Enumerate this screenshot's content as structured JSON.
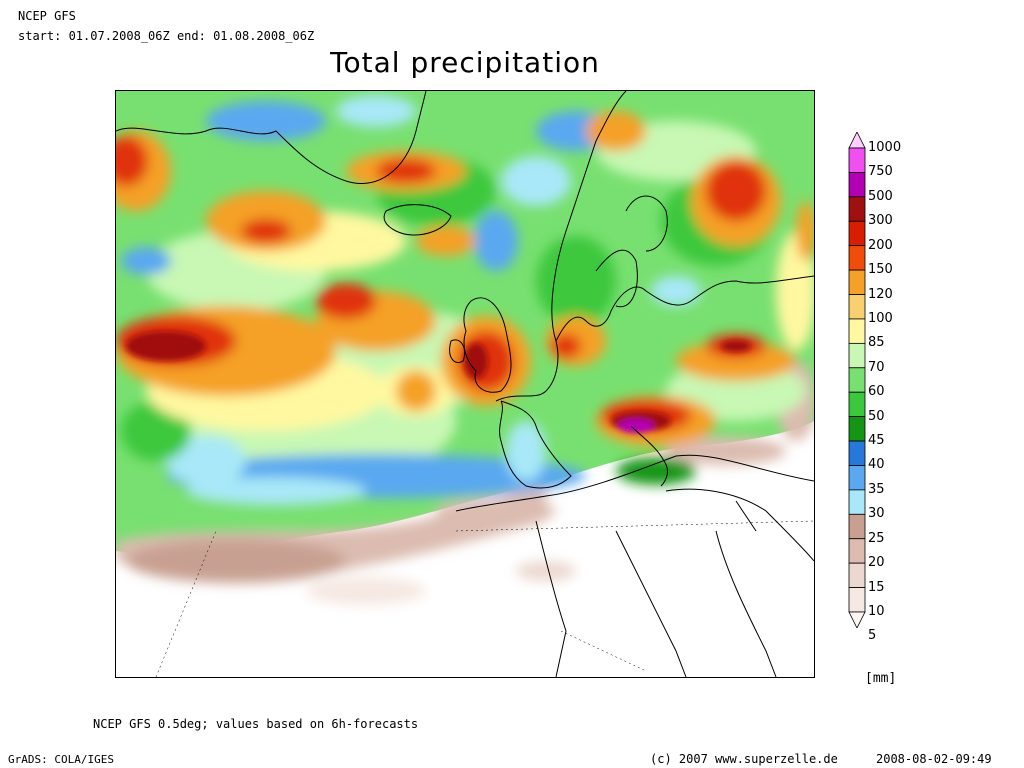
{
  "header": {
    "model": "NCEP GFS",
    "period": "start: 01.07.2008_06Z end: 01.08.2008_06Z",
    "title": "Total precipitation"
  },
  "map": {
    "region": "North Atlantic and Europe",
    "colors": {
      "brown": "#c8a091",
      "light_blue": "#a8e8f8",
      "blue": "#3b8ee8",
      "green_light": "#98f090",
      "green": "#3cc83c",
      "green_dark": "#149614",
      "yellow": "#fff8a0",
      "orange": "#f5a028",
      "red": "#e0320a",
      "dark_red": "#a01010",
      "purple": "#a000a0"
    }
  },
  "legend": {
    "unit": "[mm]",
    "levels": [
      {
        "value": "1000",
        "color": "#ffd0ff"
      },
      {
        "value": "750",
        "color": "#f050f0"
      },
      {
        "value": "500",
        "color": "#b400b4"
      },
      {
        "value": "300",
        "color": "#a01010"
      },
      {
        "value": "200",
        "color": "#d81e00"
      },
      {
        "value": "150",
        "color": "#f04d0a"
      },
      {
        "value": "120",
        "color": "#f5a028"
      },
      {
        "value": "100",
        "color": "#f8d070"
      },
      {
        "value": "85",
        "color": "#fff8a0"
      },
      {
        "value": "70",
        "color": "#c8f8b4"
      },
      {
        "value": "60",
        "color": "#78e070"
      },
      {
        "value": "50",
        "color": "#3cc83c"
      },
      {
        "value": "45",
        "color": "#149614"
      },
      {
        "value": "40",
        "color": "#2878dc"
      },
      {
        "value": "35",
        "color": "#5aa8f0"
      },
      {
        "value": "30",
        "color": "#a8e8f8"
      },
      {
        "value": "25",
        "color": "#c8a091"
      },
      {
        "value": "20",
        "color": "#dcbcb0"
      },
      {
        "value": "15",
        "color": "#ecd8d0"
      },
      {
        "value": "10",
        "color": "#f6e8e2"
      },
      {
        "value": "5",
        "color": "#fdf6f2"
      }
    ]
  },
  "footer": {
    "note": "NCEP GFS 0.5deg; values based on 6h-forecasts",
    "software": "GrADS: COLA/IGES",
    "copyright": "(c) 2007 www.superzelle.de",
    "timestamp": "2008-08-02-09:49"
  }
}
